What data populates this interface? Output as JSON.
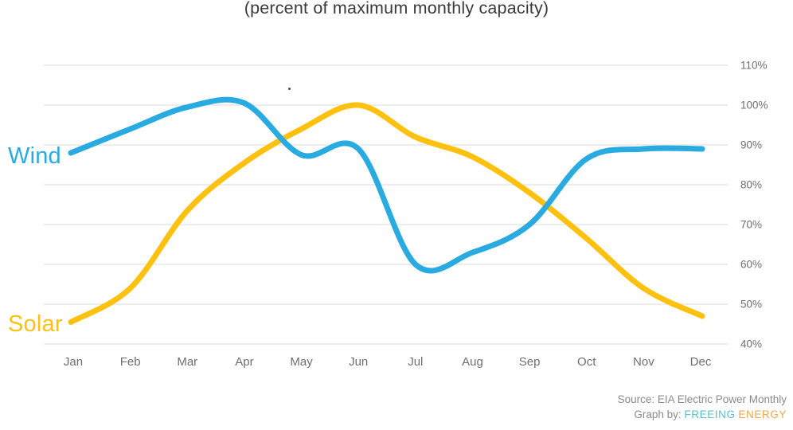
{
  "title": "(percent of maximum monthly capacity)",
  "chart_data": {
    "type": "line",
    "categories": [
      "Jan",
      "Feb",
      "Mar",
      "Apr",
      "May",
      "Jun",
      "Jul",
      "Aug",
      "Sep",
      "Oct",
      "Nov",
      "Dec"
    ],
    "series": [
      {
        "name": "Wind",
        "color": "#29ABE2",
        "values": [
          88,
          94,
          99.5,
          100.5,
          87.5,
          89,
          60,
          63,
          70,
          86.5,
          89,
          89
        ]
      },
      {
        "name": "Solar",
        "color": "#FEC110",
        "values": [
          45.5,
          54,
          73.5,
          85.5,
          94,
          100,
          92,
          87,
          78,
          66.5,
          54,
          47
        ]
      }
    ],
    "title": "(percent of maximum monthly capacity)",
    "xlabel": "",
    "ylabel": "",
    "ylim": [
      40,
      110
    ],
    "ytick_values": [
      110,
      100,
      90,
      80,
      70,
      60,
      50,
      40
    ],
    "ytick_labels": [
      "110%",
      "100%",
      "90%",
      "80%",
      "70%",
      "60%",
      "50%",
      "40%"
    ],
    "grid": true,
    "gridline_color": "#dbdbdb",
    "axis_label_color": "#6f6f6f",
    "legend_position": "series-labels-left-of-lines",
    "line_width": 7
  },
  "footer": {
    "source_line": "Source: EIA Electric Power Monthly",
    "graph_by_prefix": "Graph by:",
    "brand": [
      {
        "text": "FREEING",
        "color": "#56C3CC"
      },
      {
        "text": "ENERGY",
        "color": "#F2A653"
      }
    ]
  }
}
